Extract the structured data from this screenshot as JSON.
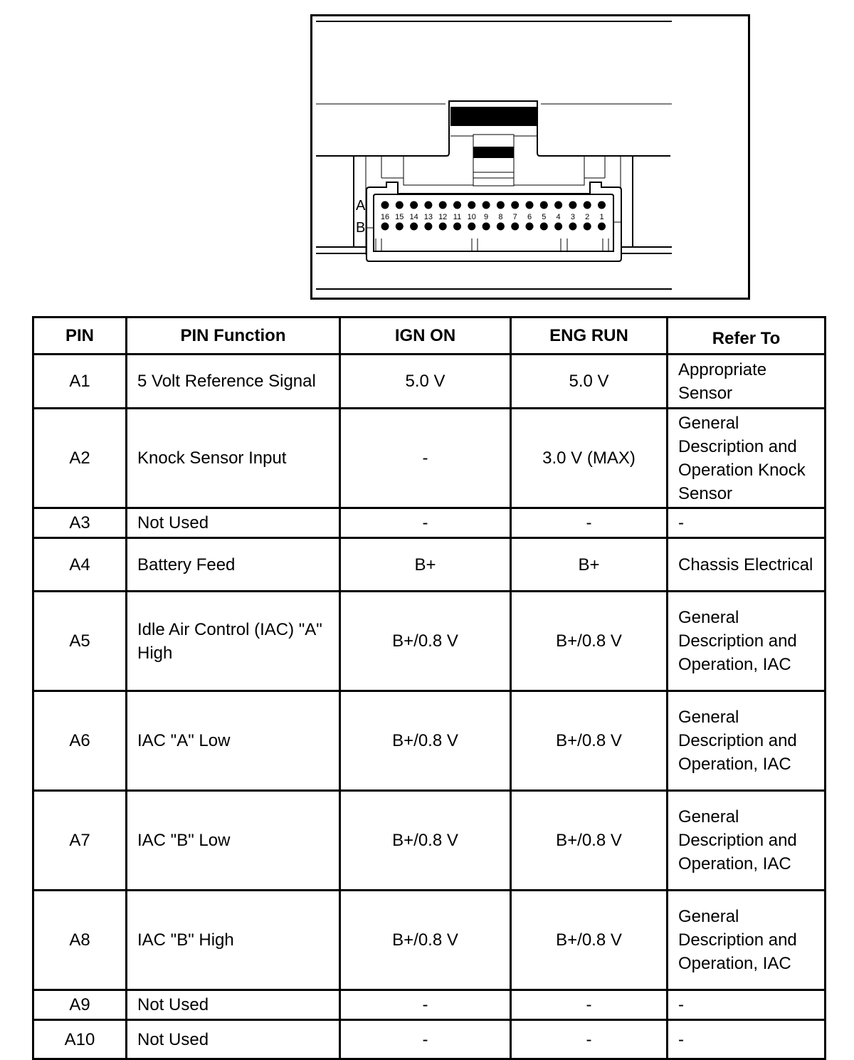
{
  "connector": {
    "row_labels": [
      "A",
      "B"
    ],
    "pin_numbers": [
      "16",
      "15",
      "14",
      "13",
      "12",
      "11",
      "10",
      "9",
      "8",
      "7",
      "6",
      "5",
      "4",
      "3",
      "2",
      "1"
    ]
  },
  "table": {
    "headers": [
      "PIN",
      "PIN Function",
      "IGN ON",
      "ENG RUN",
      "Refer To"
    ],
    "rows": [
      {
        "pin": "A1",
        "function": "5 Volt Reference Signal",
        "ign_on": "5.0 V",
        "eng_run": "5.0 V",
        "refer_to": "Appropriate Sensor"
      },
      {
        "pin": "A2",
        "function": "Knock Sensor Input",
        "ign_on": "-",
        "eng_run": "3.0 V (MAX)",
        "refer_to": "General Description and Operation Knock Sensor"
      },
      {
        "pin": "A3",
        "function": "Not Used",
        "ign_on": "-",
        "eng_run": "-",
        "refer_to": "-"
      },
      {
        "pin": "A4",
        "function": "Battery Feed",
        "ign_on": "B+",
        "eng_run": "B+",
        "refer_to": "Chassis Electrical"
      },
      {
        "pin": "A5",
        "function": "Idle Air Control (IAC) \"A\" High",
        "ign_on": "B+/0.8 V",
        "eng_run": "B+/0.8 V",
        "refer_to": "General Description and Operation, IAC"
      },
      {
        "pin": "A6",
        "function": "IAC \"A\" Low",
        "ign_on": "B+/0.8 V",
        "eng_run": "B+/0.8 V",
        "refer_to": "General Description and Operation, IAC"
      },
      {
        "pin": "A7",
        "function": "IAC \"B\" Low",
        "ign_on": "B+/0.8 V",
        "eng_run": "B+/0.8 V",
        "refer_to": "General Description and Operation, IAC"
      },
      {
        "pin": "A8",
        "function": "IAC \"B\" High",
        "ign_on": "B+/0.8 V",
        "eng_run": "B+/0.8 V",
        "refer_to": "General Description and Operation, IAC"
      },
      {
        "pin": "A9",
        "function": "Not Used",
        "ign_on": "-",
        "eng_run": "-",
        "refer_to": "-"
      },
      {
        "pin": "A10",
        "function": "Not Used",
        "ign_on": "-",
        "eng_run": "-",
        "refer_to": "-"
      }
    ]
  }
}
